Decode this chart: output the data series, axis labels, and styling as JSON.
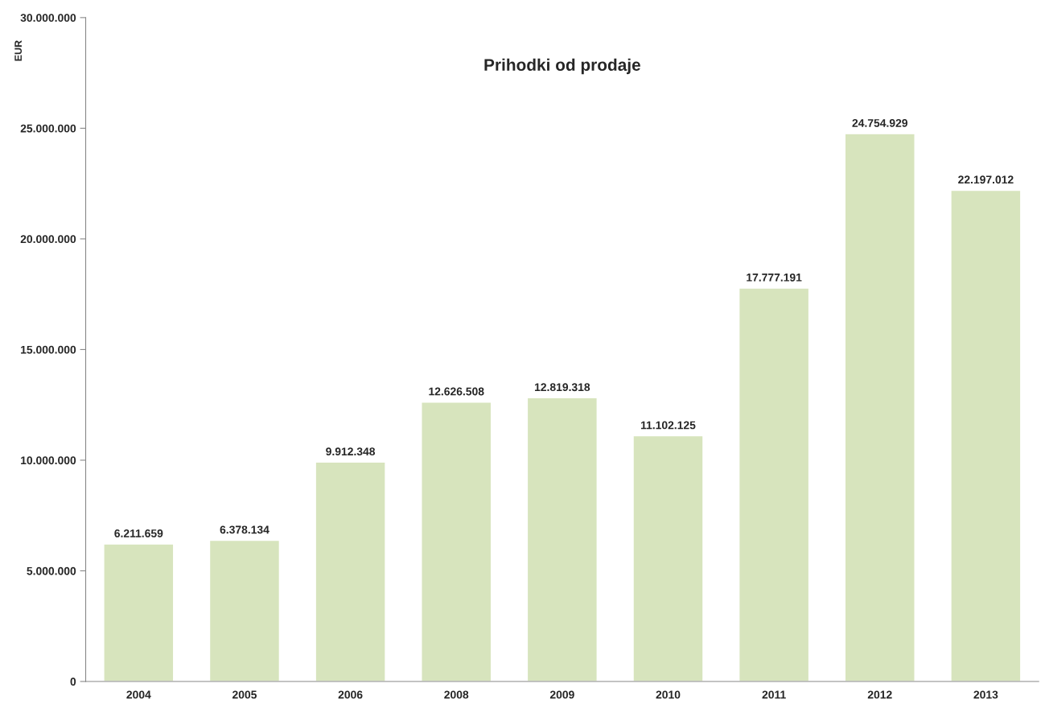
{
  "chart_data": {
    "type": "bar",
    "title": "Prihodki od prodaje",
    "ylabel": "EUR",
    "categories": [
      "2004",
      "2005",
      "2006",
      "2008",
      "2009",
      "2010",
      "2011",
      "2012",
      "2013"
    ],
    "values": [
      6211659,
      6378134,
      9912348,
      12626508,
      12819318,
      11102125,
      17777191,
      24754929,
      22197012
    ],
    "value_labels": [
      "6.211.659",
      "6.378.134",
      "9.912.348",
      "12.626.508",
      "12.819.318",
      "11.102.125",
      "17.777.191",
      "24.754.929",
      "22.197.012"
    ],
    "color": "#d7e4bd",
    "ylim": [
      0,
      30000000
    ],
    "yticks": [
      {
        "value": 0,
        "label": "0"
      },
      {
        "value": 5000000,
        "label": "5.000.000"
      },
      {
        "value": 10000000,
        "label": "10.000.000"
      },
      {
        "value": 15000000,
        "label": "15.000.000"
      },
      {
        "value": 20000000,
        "label": "20.000.000"
      },
      {
        "value": 25000000,
        "label": "25.000.000"
      },
      {
        "value": 30000000,
        "label": "30.000.000"
      }
    ],
    "grid": false,
    "legend": false
  }
}
